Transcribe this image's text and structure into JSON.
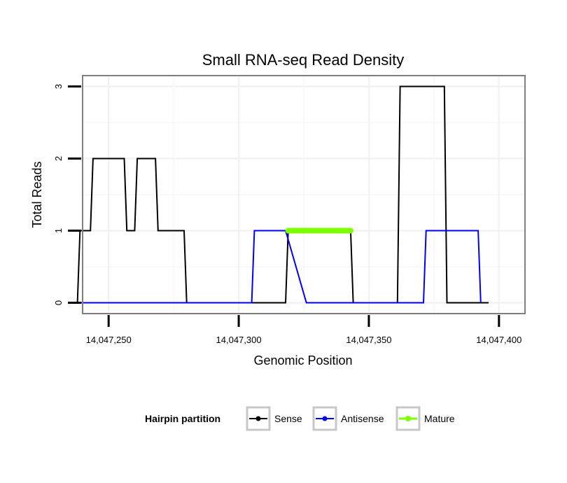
{
  "chart_data": {
    "type": "line",
    "title": "Small RNA-seq Read Density",
    "xlabel": "Genomic Position",
    "ylabel": "Total Reads",
    "xlim": [
      14047240,
      14047410
    ],
    "ylim": [
      -0.15,
      3.15
    ],
    "x_ticks": [
      14047250,
      14047300,
      14047350,
      14047400
    ],
    "x_tick_labels": [
      "14,047,250",
      "14,047,300",
      "14,047,350",
      "14,047,400"
    ],
    "y_ticks": [
      0,
      1,
      2,
      3
    ],
    "y_tick_labels": [
      "0",
      "1",
      "2",
      "3"
    ],
    "grid": true,
    "legend": {
      "title": "Hairpin partition",
      "position": "bottom",
      "entries": [
        {
          "name": "Sense",
          "color": "#000000"
        },
        {
          "name": "Antisense",
          "color": "#0000ff"
        },
        {
          "name": "Mature",
          "color": "#7fff00"
        }
      ]
    },
    "series": [
      {
        "name": "Sense",
        "color": "#000000",
        "points": [
          [
            14047238,
            0
          ],
          [
            14047239,
            1
          ],
          [
            14047243,
            1
          ],
          [
            14047244,
            2
          ],
          [
            14047256,
            2
          ],
          [
            14047257,
            1
          ],
          [
            14047260,
            1
          ],
          [
            14047261,
            2
          ],
          [
            14047268,
            2
          ],
          [
            14047269,
            1
          ],
          [
            14047279,
            1
          ],
          [
            14047280,
            0
          ],
          [
            14047318,
            0
          ],
          [
            14047319,
            1
          ],
          [
            14047343,
            1
          ],
          [
            14047344,
            0
          ],
          [
            14047361,
            0
          ],
          [
            14047362,
            3
          ],
          [
            14047379,
            3
          ],
          [
            14047380,
            0
          ],
          [
            14047396,
            0
          ]
        ]
      },
      {
        "name": "Antisense",
        "color": "#0000ff",
        "points": [
          [
            14047238,
            0
          ],
          [
            14047305,
            0
          ],
          [
            14047306,
            1
          ],
          [
            14047317,
            1
          ],
          [
            14047318,
            1
          ],
          [
            14047326,
            0
          ],
          [
            14047371,
            0
          ],
          [
            14047372,
            1
          ],
          [
            14047392,
            1
          ],
          [
            14047393,
            0
          ]
        ]
      },
      {
        "name": "Mature",
        "color": "#7fff00",
        "points": [
          [
            14047319,
            1
          ],
          [
            14047343,
            1
          ]
        ]
      }
    ]
  }
}
